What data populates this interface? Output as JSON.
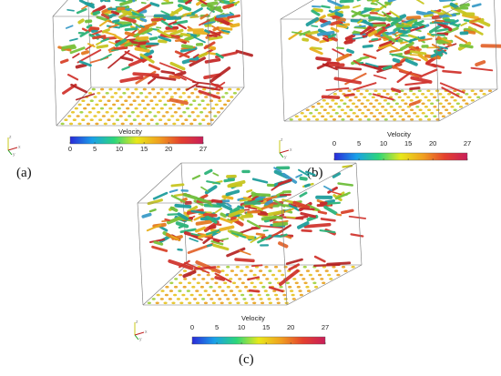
{
  "colorbar": {
    "title": "Velocity",
    "ticks": [
      "0",
      "5",
      "10",
      "15",
      "20",
      "27"
    ],
    "min": 0,
    "max": 27,
    "colors": [
      "#2a2ad8",
      "#1aa0e8",
      "#2cd67a",
      "#e8e81a",
      "#f0a020",
      "#e4402e",
      "#c81e5a"
    ]
  },
  "panels": [
    {
      "label": "(a)"
    },
    {
      "label": "(b)"
    },
    {
      "label": "(c)"
    }
  ],
  "axes": {
    "x": "x",
    "y": "y",
    "z": "z"
  }
}
